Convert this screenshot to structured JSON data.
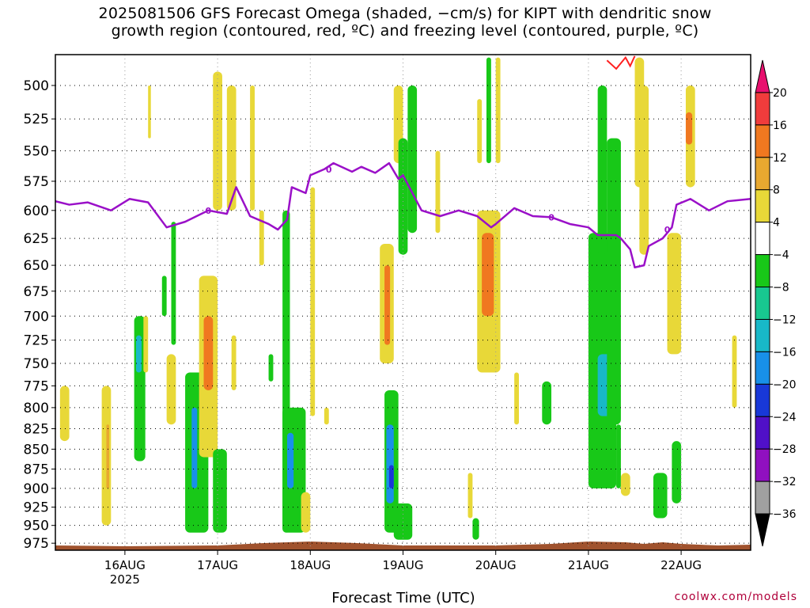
{
  "title": {
    "line1": "2025081506 GFS Forecast Omega (shaded, −cm/s) for KIPT with dendritic snow",
    "line2": "growth region (contoured, red, ºC) and freezing level (contoured, purple, ºC)"
  },
  "credit": "coolwx.com/models",
  "chart_data": {
    "type": "heatmap",
    "title": "2025081506 GFS Forecast Omega (shaded, −cm/s) for KIPT with dendritic snow growth region (contoured, red, ºC) and freezing level (contoured, purple, ºC)",
    "xlabel": "Forecast Time (UTC)",
    "ylabel": "",
    "x_ticks": [
      "16AUG",
      "17AUG",
      "18AUG",
      "19AUG",
      "20AUG",
      "21AUG",
      "22AUG"
    ],
    "x_tick_sublabel": "2025",
    "x_range_days_from_16AUG00": [
      -0.75,
      6.75
    ],
    "y_ticks": [
      500,
      525,
      550,
      575,
      600,
      625,
      650,
      675,
      700,
      725,
      750,
      775,
      800,
      825,
      850,
      875,
      900,
      925,
      950,
      975
    ],
    "y_range_hpa": [
      478,
      985
    ],
    "y_scale": "log-pressure",
    "grid": true,
    "colorbar": {
      "labels": [
        "20",
        "16",
        "12",
        "8",
        "4",
        "−4",
        "−8",
        "−12",
        "−16",
        "−20",
        "−24",
        "−28",
        "−32",
        "−36"
      ],
      "colors": [
        "#e8106e",
        "#f03c3c",
        "#f07820",
        "#e8a830",
        "#e8d838",
        "#ffffff",
        "#18c818",
        "#18c890",
        "#18b8c8",
        "#1890e8",
        "#1838d8",
        "#5010c8",
        "#9010c0",
        "#a0a0a0",
        "#000000"
      ]
    },
    "freezing_level": {
      "name": "0 ºC",
      "color": "#9a10c8",
      "label": "0",
      "points": [
        [
          -0.75,
          592
        ],
        [
          -0.6,
          595
        ],
        [
          -0.4,
          593
        ],
        [
          -0.15,
          600
        ],
        [
          0.05,
          590
        ],
        [
          0.25,
          593
        ],
        [
          0.45,
          615
        ],
        [
          0.65,
          610
        ],
        [
          0.9,
          600
        ],
        [
          1.1,
          603
        ],
        [
          1.2,
          580
        ],
        [
          1.35,
          605
        ],
        [
          1.55,
          612
        ],
        [
          1.65,
          617
        ],
        [
          1.75,
          608
        ],
        [
          1.8,
          580
        ],
        [
          1.95,
          585
        ],
        [
          2.0,
          570
        ],
        [
          2.15,
          565
        ],
        [
          2.25,
          560
        ],
        [
          2.45,
          567
        ],
        [
          2.55,
          563
        ],
        [
          2.7,
          568
        ],
        [
          2.85,
          560
        ],
        [
          2.95,
          573
        ],
        [
          3.0,
          570
        ],
        [
          3.2,
          600
        ],
        [
          3.4,
          605
        ],
        [
          3.6,
          600
        ],
        [
          3.8,
          605
        ],
        [
          3.95,
          615
        ],
        [
          4.0,
          612
        ],
        [
          4.2,
          598
        ],
        [
          4.4,
          605
        ],
        [
          4.6,
          606
        ],
        [
          4.8,
          612
        ],
        [
          5.0,
          615
        ],
        [
          5.1,
          622
        ],
        [
          5.3,
          622
        ],
        [
          5.35,
          625
        ],
        [
          5.45,
          635
        ],
        [
          5.5,
          652
        ],
        [
          5.6,
          650
        ],
        [
          5.65,
          632
        ],
        [
          5.8,
          625
        ],
        [
          5.9,
          615
        ],
        [
          5.95,
          595
        ],
        [
          6.1,
          590
        ],
        [
          6.3,
          600
        ],
        [
          6.5,
          592
        ],
        [
          6.75,
          590
        ]
      ]
    },
    "dendritic_growth_region": {
      "name": "dendritic snow growth region",
      "color": "#ff2020",
      "points": [
        [
          5.2,
          482
        ],
        [
          5.3,
          488
        ],
        [
          5.4,
          480
        ],
        [
          5.45,
          486
        ],
        [
          5.5,
          479
        ]
      ]
    },
    "surface_terrain": {
      "color": "#a0522d"
    },
    "shaded_cells": [
      {
        "t": [
          -0.7,
          -0.6
        ],
        "p": [
          775,
          840
        ],
        "w": 6
      },
      {
        "t": [
          -0.25,
          -0.15
        ],
        "p": [
          775,
          950
        ],
        "w": 6
      },
      {
        "t": [
          -0.2,
          -0.17
        ],
        "p": [
          820,
          900
        ],
        "w": 10
      },
      {
        "t": [
          0.1,
          0.22
        ],
        "p": [
          700,
          865
        ],
        "w": -6
      },
      {
        "t": [
          0.12,
          0.18
        ],
        "p": [
          720,
          760
        ],
        "w": -12
      },
      {
        "t": [
          0.2,
          0.25
        ],
        "p": [
          700,
          760
        ],
        "w": 6
      },
      {
        "t": [
          0.25,
          0.28
        ],
        "p": [
          500,
          540
        ],
        "w": 6
      },
      {
        "t": [
          0.4,
          0.45
        ],
        "p": [
          660,
          700
        ],
        "w": -6
      },
      {
        "t": [
          0.45,
          0.55
        ],
        "p": [
          740,
          820
        ],
        "w": 6
      },
      {
        "t": [
          0.5,
          0.55
        ],
        "p": [
          610,
          730
        ],
        "w": -6
      },
      {
        "t": [
          0.65,
          0.9
        ],
        "p": [
          760,
          960
        ],
        "w": -6
      },
      {
        "t": [
          0.72,
          0.78
        ],
        "p": [
          800,
          900
        ],
        "w": -16
      },
      {
        "t": [
          0.8,
          1.0
        ],
        "p": [
          660,
          860
        ],
        "w": 6
      },
      {
        "t": [
          0.85,
          0.95
        ],
        "p": [
          700,
          780
        ],
        "w": 12
      },
      {
        "t": [
          0.95,
          1.1
        ],
        "p": [
          850,
          960
        ],
        "w": -6
      },
      {
        "t": [
          0.95,
          1.05
        ],
        "p": [
          490,
          600
        ],
        "w": 6
      },
      {
        "t": [
          1.1,
          1.2
        ],
        "p": [
          500,
          600
        ],
        "w": 6
      },
      {
        "t": [
          1.15,
          1.2
        ],
        "p": [
          720,
          780
        ],
        "w": 6
      },
      {
        "t": [
          1.35,
          1.4
        ],
        "p": [
          500,
          600
        ],
        "w": 6
      },
      {
        "t": [
          1.45,
          1.5
        ],
        "p": [
          600,
          650
        ],
        "w": 6
      },
      {
        "t": [
          1.55,
          1.6
        ],
        "p": [
          740,
          770
        ],
        "w": -6
      },
      {
        "t": [
          1.7,
          1.78
        ],
        "p": [
          600,
          960
        ],
        "w": -6
      },
      {
        "t": [
          1.7,
          1.95
        ],
        "p": [
          800,
          960
        ],
        "w": -6
      },
      {
        "t": [
          1.75,
          1.82
        ],
        "p": [
          830,
          900
        ],
        "w": -16
      },
      {
        "t": [
          1.9,
          2.0
        ],
        "p": [
          905,
          960
        ],
        "w": 6
      },
      {
        "t": [
          2.0,
          2.05
        ],
        "p": [
          580,
          810
        ],
        "w": 6
      },
      {
        "t": [
          2.15,
          2.2
        ],
        "p": [
          800,
          820
        ],
        "w": 6
      },
      {
        "t": [
          2.75,
          2.9
        ],
        "p": [
          630,
          750
        ],
        "w": 6
      },
      {
        "t": [
          2.8,
          2.86
        ],
        "p": [
          650,
          730
        ],
        "w": 12
      },
      {
        "t": [
          2.8,
          2.95
        ],
        "p": [
          780,
          960
        ],
        "w": -6
      },
      {
        "t": [
          2.82,
          2.9
        ],
        "p": [
          820,
          920
        ],
        "w": -16
      },
      {
        "t": [
          2.85,
          2.9
        ],
        "p": [
          870,
          900
        ],
        "w": -20
      },
      {
        "t": [
          2.9,
          3.1
        ],
        "p": [
          920,
          970
        ],
        "w": -6
      },
      {
        "t": [
          2.9,
          3.0
        ],
        "p": [
          500,
          560
        ],
        "w": 6
      },
      {
        "t": [
          2.95,
          3.05
        ],
        "p": [
          540,
          640
        ],
        "w": -6
      },
      {
        "t": [
          3.05,
          3.15
        ],
        "p": [
          500,
          620
        ],
        "w": -6
      },
      {
        "t": [
          3.35,
          3.4
        ],
        "p": [
          550,
          620
        ],
        "w": 6
      },
      {
        "t": [
          3.7,
          3.75
        ],
        "p": [
          880,
          940
        ],
        "w": 6
      },
      {
        "t": [
          3.75,
          3.82
        ],
        "p": [
          940,
          970
        ],
        "w": -6
      },
      {
        "t": [
          3.8,
          3.85
        ],
        "p": [
          510,
          560
        ],
        "w": 6
      },
      {
        "t": [
          3.8,
          4.05
        ],
        "p": [
          600,
          760
        ],
        "w": 6
      },
      {
        "t": [
          3.85,
          3.98
        ],
        "p": [
          620,
          700
        ],
        "w": 12
      },
      {
        "t": [
          3.9,
          3.95
        ],
        "p": [
          480,
          560
        ],
        "w": -6
      },
      {
        "t": [
          4.0,
          4.05
        ],
        "p": [
          480,
          560
        ],
        "w": 6
      },
      {
        "t": [
          4.2,
          4.25
        ],
        "p": [
          760,
          820
        ],
        "w": 6
      },
      {
        "t": [
          4.5,
          4.6
        ],
        "p": [
          770,
          820
        ],
        "w": -6
      },
      {
        "t": [
          5.0,
          5.3
        ],
        "p": [
          620,
          790
        ],
        "w": -6
      },
      {
        "t": [
          5.0,
          5.3
        ],
        "p": [
          780,
          900
        ],
        "w": -6
      },
      {
        "t": [
          5.1,
          5.25
        ],
        "p": [
          740,
          810
        ],
        "w": -12
      },
      {
        "t": [
          5.1,
          5.2
        ],
        "p": [
          500,
          640
        ],
        "w": -6
      },
      {
        "t": [
          5.2,
          5.35
        ],
        "p": [
          540,
          820
        ],
        "w": -6
      },
      {
        "t": [
          5.3,
          5.35
        ],
        "p": [
          820,
          900
        ],
        "w": -6
      },
      {
        "t": [
          5.35,
          5.45
        ],
        "p": [
          880,
          910
        ],
        "w": 6
      },
      {
        "t": [
          5.5,
          5.6
        ],
        "p": [
          480,
          580
        ],
        "w": 6
      },
      {
        "t": [
          5.55,
          5.65
        ],
        "p": [
          500,
          640
        ],
        "w": 6
      },
      {
        "t": [
          5.7,
          5.85
        ],
        "p": [
          880,
          940
        ],
        "w": -6
      },
      {
        "t": [
          5.85,
          6.0
        ],
        "p": [
          620,
          740
        ],
        "w": 6
      },
      {
        "t": [
          5.9,
          6.0
        ],
        "p": [
          840,
          920
        ],
        "w": -6
      },
      {
        "t": [
          6.05,
          6.15
        ],
        "p": [
          500,
          580
        ],
        "w": 6
      },
      {
        "t": [
          6.05,
          6.12
        ],
        "p": [
          520,
          545
        ],
        "w": 12
      },
      {
        "t": [
          6.55,
          6.6
        ],
        "p": [
          720,
          800
        ],
        "w": 6
      }
    ]
  }
}
